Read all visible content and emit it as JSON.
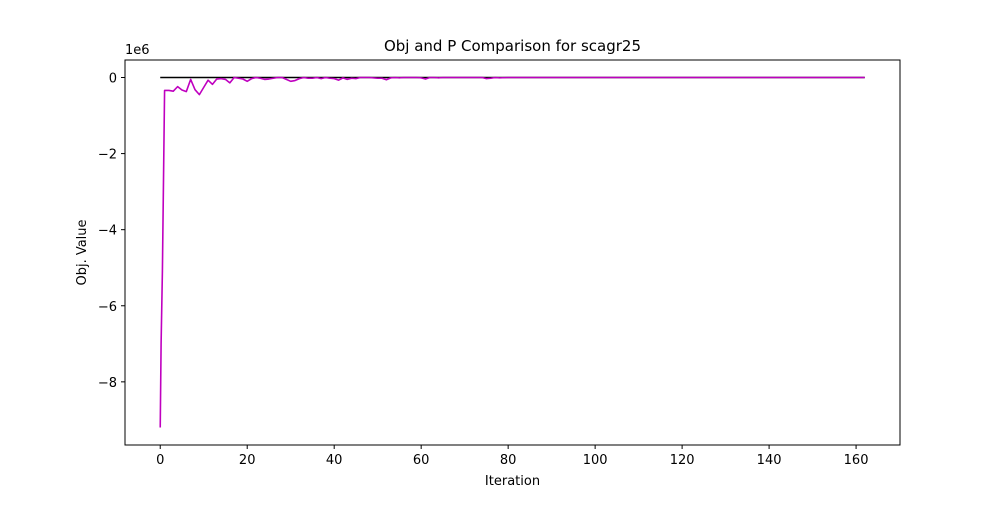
{
  "chart_data": {
    "type": "line",
    "title": "Obj and P Comparison for scagr25",
    "xlabel": "Iteration",
    "ylabel": "Obj. Value",
    "y_scale_label": "1e6",
    "y_multiplier": 1000000,
    "xlim": [
      -8.1,
      170.1
    ],
    "ylim": [
      -9.66,
      0.46
    ],
    "x_ticks": [
      0,
      20,
      40,
      60,
      80,
      100,
      120,
      140,
      160
    ],
    "x_tick_labels": [
      "0",
      "20",
      "40",
      "60",
      "80",
      "100",
      "120",
      "140",
      "160"
    ],
    "y_ticks": [
      -8,
      -6,
      -4,
      -2,
      0
    ],
    "y_tick_labels": [
      "−8",
      "−6",
      "−4",
      "−2",
      "0"
    ],
    "grid": false,
    "series": [
      {
        "color": "#000000",
        "x": [
          0,
          162
        ],
        "y": [
          0,
          0
        ]
      },
      {
        "color": "#bf00bf",
        "x": [
          0,
          0.2,
          0.5,
          1,
          2,
          3,
          4,
          5,
          6,
          7,
          8,
          9,
          10,
          11,
          12,
          13,
          14,
          15,
          16,
          17,
          18,
          19,
          20,
          21,
          22,
          23,
          24,
          25,
          26,
          27,
          28,
          29,
          30,
          31,
          32,
          33,
          34,
          35,
          36,
          37,
          38,
          39,
          40,
          41,
          42,
          43,
          44,
          45,
          46,
          47,
          48,
          49,
          50,
          51,
          52,
          53,
          54,
          55,
          56,
          57,
          58,
          59,
          60,
          61,
          62,
          63,
          64,
          65,
          66,
          68,
          70,
          72,
          74,
          75,
          76,
          77,
          78,
          80,
          85,
          90,
          95,
          100,
          110,
          120,
          130,
          140,
          150,
          160,
          162
        ],
        "y": [
          -9.2,
          -7.0,
          -5.1,
          -0.34,
          -0.34,
          -0.36,
          -0.24,
          -0.33,
          -0.37,
          -0.05,
          -0.32,
          -0.45,
          -0.26,
          -0.07,
          -0.18,
          -0.04,
          -0.03,
          -0.05,
          -0.14,
          0.0,
          -0.02,
          -0.04,
          -0.1,
          -0.03,
          0.0,
          -0.02,
          -0.05,
          -0.04,
          -0.02,
          0.0,
          0.0,
          -0.05,
          -0.1,
          -0.08,
          -0.03,
          0.0,
          -0.02,
          -0.02,
          0.0,
          -0.03,
          0.0,
          -0.02,
          -0.03,
          -0.07,
          -0.01,
          -0.05,
          -0.02,
          -0.03,
          0.0,
          0.0,
          0.0,
          -0.01,
          -0.02,
          -0.02,
          -0.06,
          -0.01,
          0.0,
          -0.01,
          0.0,
          0.0,
          0.0,
          0.0,
          -0.01,
          -0.04,
          0.0,
          0.0,
          -0.01,
          0.0,
          0.0,
          0.0,
          0.0,
          0.0,
          0.0,
          -0.03,
          -0.02,
          0.0,
          -0.01,
          0.0,
          0.0,
          0.0,
          0.0,
          0.0,
          0.0,
          0.0,
          0.0,
          0.0,
          0.0,
          0.0,
          0.0
        ]
      }
    ]
  }
}
